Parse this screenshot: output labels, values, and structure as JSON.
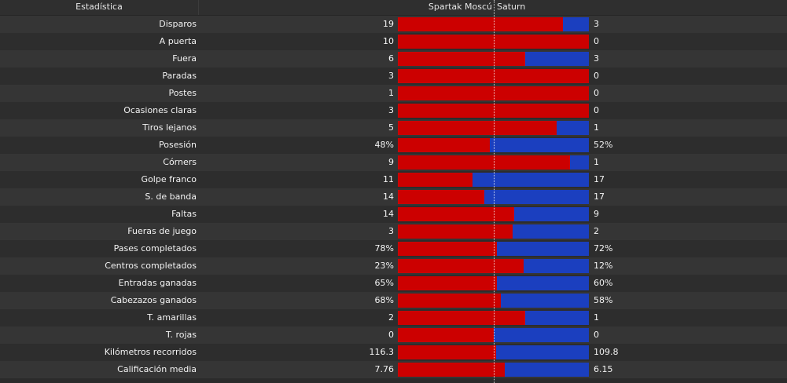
{
  "header": {
    "column_label": "Estadística",
    "home_team": "Spartak Moscú",
    "away_team": "Saturn"
  },
  "colors": {
    "home": "#cc0000",
    "away": "#1b3fbf"
  },
  "stats": [
    {
      "label": "Disparos",
      "home": "19",
      "away": "3",
      "home_share": 0.864
    },
    {
      "label": "A puerta",
      "home": "10",
      "away": "0",
      "home_share": 1.0
    },
    {
      "label": "Fuera",
      "home": "6",
      "away": "3",
      "home_share": 0.667
    },
    {
      "label": "Paradas",
      "home": "3",
      "away": "0",
      "home_share": 1.0
    },
    {
      "label": "Postes",
      "home": "1",
      "away": "0",
      "home_share": 1.0
    },
    {
      "label": "Ocasiones claras",
      "home": "3",
      "away": "0",
      "home_share": 1.0
    },
    {
      "label": "Tiros lejanos",
      "home": "5",
      "away": "1",
      "home_share": 0.833
    },
    {
      "label": "Posesión",
      "home": "48%",
      "away": "52%",
      "home_share": 0.48
    },
    {
      "label": "Córners",
      "home": "9",
      "away": "1",
      "home_share": 0.9
    },
    {
      "label": "Golpe franco",
      "home": "11",
      "away": "17",
      "home_share": 0.393
    },
    {
      "label": "S. de banda",
      "home": "14",
      "away": "17",
      "home_share": 0.452
    },
    {
      "label": "Faltas",
      "home": "14",
      "away": "9",
      "home_share": 0.609
    },
    {
      "label": "Fueras de juego",
      "home": "3",
      "away": "2",
      "home_share": 0.6
    },
    {
      "label": "Pases completados",
      "home": "78%",
      "away": "72%",
      "home_share": 0.52
    },
    {
      "label": "Centros completados",
      "home": "23%",
      "away": "12%",
      "home_share": 0.657
    },
    {
      "label": "Entradas ganadas",
      "home": "65%",
      "away": "60%",
      "home_share": 0.52
    },
    {
      "label": "Cabezazos ganados",
      "home": "68%",
      "away": "58%",
      "home_share": 0.54
    },
    {
      "label": "T. amarillas",
      "home": "2",
      "away": "1",
      "home_share": 0.667
    },
    {
      "label": "T. rojas",
      "home": "0",
      "away": "0",
      "home_share": 0.5
    },
    {
      "label": "Kilómetros recorridos",
      "home": "116.3",
      "away": "109.8",
      "home_share": 0.514
    },
    {
      "label": "Calificación media",
      "home": "7.76",
      "away": "6.15",
      "home_share": 0.558
    }
  ]
}
